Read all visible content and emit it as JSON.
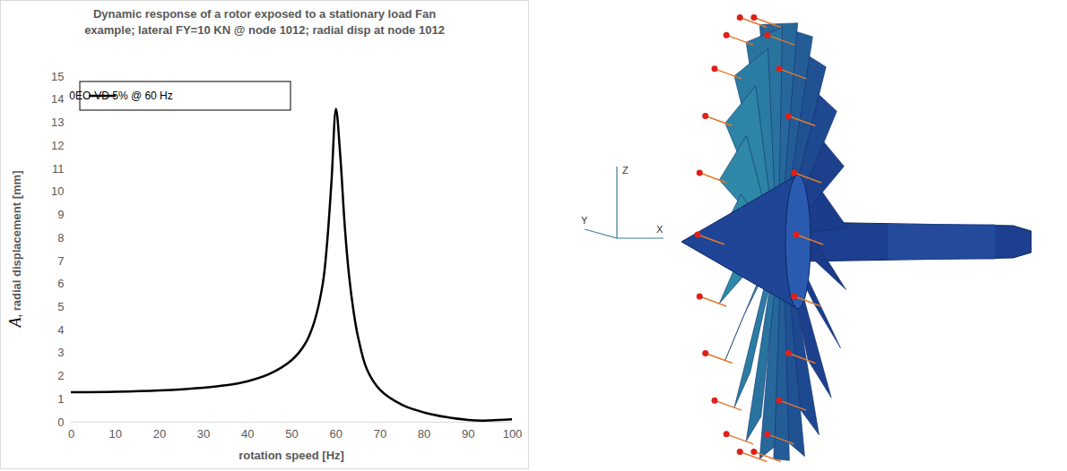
{
  "chart_data": {
    "type": "line",
    "title": "Dynamic response of a rotor exposed to a stationary load Fan example; lateral FY=10 KN @ node 1012; radial disp at node 1012",
    "x_label": "rotation speed [Hz]",
    "y_label": "A, radial displacement [mm]",
    "x": [
      0,
      10,
      20,
      30,
      35,
      40,
      45,
      50,
      53,
      55,
      57,
      58,
      59,
      60,
      61,
      62,
      63,
      64,
      65,
      67,
      70,
      75,
      80,
      85,
      90,
      93,
      95,
      100
    ],
    "series": [
      {
        "name": "0EO-VD 5% @ 60 Hz",
        "color": "#000000",
        "values": [
          1.3,
          1.32,
          1.38,
          1.5,
          1.6,
          1.78,
          2.1,
          2.7,
          3.4,
          4.3,
          6.0,
          7.8,
          10.5,
          13.6,
          11.5,
          8.5,
          6.3,
          4.8,
          3.7,
          2.3,
          1.4,
          0.75,
          0.42,
          0.22,
          0.1,
          0.07,
          0.08,
          0.13
        ]
      }
    ],
    "xlim": [
      0,
      100
    ],
    "xticks": [
      0,
      10,
      20,
      30,
      40,
      50,
      60,
      70,
      80,
      90,
      100
    ],
    "ylim": [
      0,
      15
    ],
    "yticks": [
      0,
      1,
      2,
      3,
      4,
      5,
      6,
      7,
      8,
      9,
      10,
      11,
      12,
      13,
      14,
      15
    ],
    "grid": false,
    "legend": "top-left"
  },
  "fan_figure": {
    "axis_labels": {
      "z": "Z",
      "y": "Y",
      "x": "X"
    }
  }
}
